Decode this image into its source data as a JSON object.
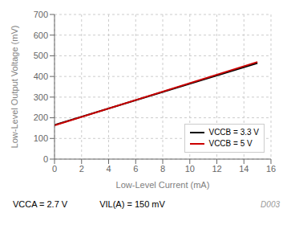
{
  "chart_data": {
    "type": "line",
    "xlabel": "Low-Level Current (mA)",
    "ylabel": "Low-Level Output Voltage (mV)",
    "x": [
      0,
      15
    ],
    "series": [
      {
        "name": "VCCB = 3.3 V",
        "color": "#000000",
        "values": [
          165,
          465
        ]
      },
      {
        "name": "VCCB = 5 V",
        "color": "#cc0000",
        "values": [
          163,
          470
        ]
      }
    ],
    "xlim": [
      0,
      16
    ],
    "ylim": [
      0,
      700
    ],
    "xticks": [
      0,
      2,
      4,
      6,
      8,
      10,
      12,
      14,
      16
    ],
    "yticks": [
      0,
      100,
      200,
      300,
      400,
      500,
      600,
      700
    ],
    "grid": true,
    "legend": "lower right",
    "annotations": [
      "VCCA = 2.7 V",
      "VIL(A) = 150 mV",
      "D003"
    ]
  }
}
